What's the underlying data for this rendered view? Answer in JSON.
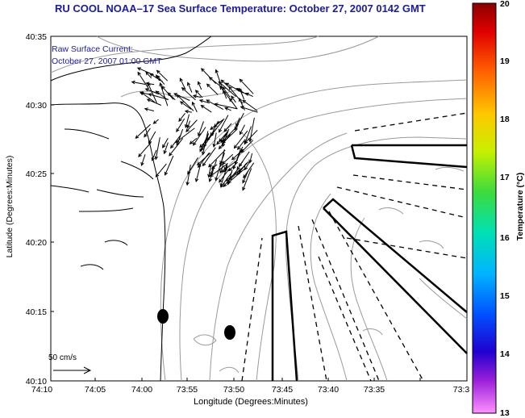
{
  "title": "RU COOL  NOAA–17  Sea Surface Temperature:  October 27, 2007 0142 GMT",
  "subtitle_lines": [
    "Raw Surface Current:",
    "October 27, 2007 01:00 GMT"
  ],
  "axes": {
    "xlabel": "Longitude (Degrees:Minutes)",
    "ylabel": "Latitude (Degrees:Minutes)",
    "x_ticks": [
      "74:10",
      "74:05",
      "74:00",
      "73:55",
      "73:50",
      "73:45",
      "73:40",
      "73:35",
      "73:3"
    ],
    "y_ticks": [
      "40:35",
      "40:30",
      "40:25",
      "40:20",
      "40:15",
      "40:10"
    ]
  },
  "colorbar": {
    "label": "Temperature (°C)",
    "ticks": [
      "20",
      "19",
      "18",
      "17",
      "16",
      "15",
      "14",
      "13"
    ]
  },
  "reference_vector": {
    "label": "50 cm/s"
  },
  "colors": {
    "title_text": "#1a1aa8",
    "contour": "#9a9a9a",
    "coast": "#000000"
  }
}
